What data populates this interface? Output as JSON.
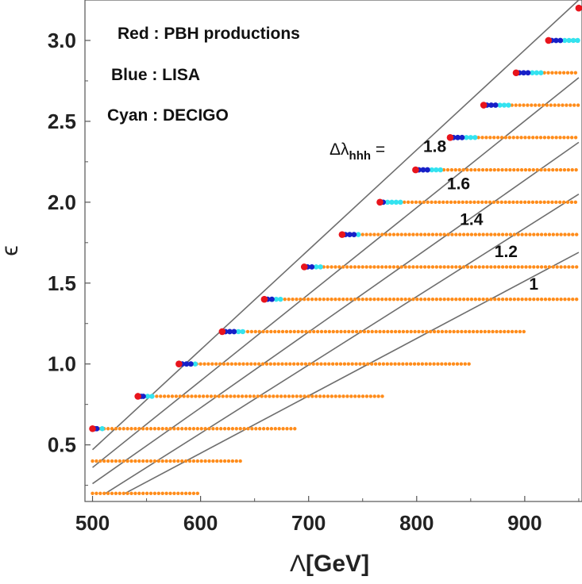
{
  "chart_data": {
    "type": "scatter",
    "xlabel_symbol": "Λ",
    "xlabel_unit": "[GeV]",
    "ylabel": "ϵ",
    "xlim": [
      493,
      953
    ],
    "ylim": [
      0.15,
      3.25
    ],
    "x_ticks": [
      500,
      600,
      700,
      800,
      900
    ],
    "y_ticks": [
      0.5,
      1.0,
      1.5,
      2.0,
      2.5,
      3.0
    ],
    "y_tick_labels": [
      "0.5",
      "1.0",
      "1.5",
      "2.0",
      "2.5",
      "3.0"
    ],
    "legend": [
      {
        "label": "Red : PBH productions",
        "color": "#e8141c"
      },
      {
        "label": "Blue : LISA",
        "color": "#1720c8"
      },
      {
        "label": "Cyan : DECIGO",
        "color": "#33e3f0"
      }
    ],
    "colors": {
      "grid_points": "#ff8c1a",
      "pbh": "#e8141c",
      "lisa": "#1720c8",
      "decigo": "#33e3f0",
      "contours": "#6e6e6e"
    },
    "grid_points": [
      {
        "epsilon": 0.2,
        "lambda_start": 500,
        "lambda_end": 600,
        "step": 3.6
      },
      {
        "epsilon": 0.4,
        "lambda_start": 500,
        "lambda_end": 640,
        "step": 3.6
      },
      {
        "epsilon": 0.6,
        "lambda_start": 500,
        "lambda_end": 690,
        "step": 3.6
      },
      {
        "epsilon": 0.8,
        "lambda_start": 545,
        "lambda_end": 770,
        "step": 3.6
      },
      {
        "epsilon": 1.0,
        "lambda_start": 582,
        "lambda_end": 850,
        "step": 3.6
      },
      {
        "epsilon": 1.2,
        "lambda_start": 622,
        "lambda_end": 900,
        "step": 3.6
      },
      {
        "epsilon": 1.4,
        "lambda_start": 660,
        "lambda_end": 950,
        "step": 3.6
      },
      {
        "epsilon": 1.6,
        "lambda_start": 696,
        "lambda_end": 950,
        "step": 3.6
      },
      {
        "epsilon": 1.8,
        "lambda_start": 732,
        "lambda_end": 950,
        "step": 3.6
      },
      {
        "epsilon": 2.0,
        "lambda_start": 767,
        "lambda_end": 950,
        "step": 3.6
      },
      {
        "epsilon": 2.2,
        "lambda_start": 800,
        "lambda_end": 950,
        "step": 3.6
      },
      {
        "epsilon": 2.4,
        "lambda_start": 832,
        "lambda_end": 950,
        "step": 3.6
      },
      {
        "epsilon": 2.6,
        "lambda_start": 863,
        "lambda_end": 950,
        "step": 3.6
      },
      {
        "epsilon": 2.8,
        "lambda_start": 893,
        "lambda_end": 950,
        "step": 3.6
      },
      {
        "epsilon": 3.0,
        "lambda_start": 922,
        "lambda_end": 950,
        "step": 3.6
      }
    ],
    "pbh_points": [
      {
        "x": 500,
        "y": 0.6
      },
      {
        "x": 542,
        "y": 0.8
      },
      {
        "x": 580,
        "y": 1.0
      },
      {
        "x": 620,
        "y": 1.2
      },
      {
        "x": 659,
        "y": 1.4
      },
      {
        "x": 696,
        "y": 1.6
      },
      {
        "x": 731,
        "y": 1.8
      },
      {
        "x": 766,
        "y": 2.0
      },
      {
        "x": 799,
        "y": 2.2
      },
      {
        "x": 831,
        "y": 2.4
      },
      {
        "x": 862,
        "y": 2.6
      },
      {
        "x": 892,
        "y": 2.8
      },
      {
        "x": 922,
        "y": 3.0
      },
      {
        "x": 950,
        "y": 3.2
      }
    ],
    "lisa_points": [
      {
        "x": 502,
        "y": 0.6
      },
      {
        "x": 504,
        "y": 0.6
      },
      {
        "x": 545,
        "y": 0.8
      },
      {
        "x": 547,
        "y": 0.8
      },
      {
        "x": 583,
        "y": 1.0
      },
      {
        "x": 587,
        "y": 1.0
      },
      {
        "x": 591,
        "y": 1.0
      },
      {
        "x": 623,
        "y": 1.2
      },
      {
        "x": 627,
        "y": 1.2
      },
      {
        "x": 631,
        "y": 1.2
      },
      {
        "x": 662,
        "y": 1.4
      },
      {
        "x": 666,
        "y": 1.4
      },
      {
        "x": 699,
        "y": 1.6
      },
      {
        "x": 703,
        "y": 1.6
      },
      {
        "x": 734,
        "y": 1.8
      },
      {
        "x": 738,
        "y": 1.8
      },
      {
        "x": 742,
        "y": 1.8
      },
      {
        "x": 769,
        "y": 2.0
      },
      {
        "x": 802,
        "y": 2.2
      },
      {
        "x": 806,
        "y": 2.2
      },
      {
        "x": 810,
        "y": 2.2
      },
      {
        "x": 834,
        "y": 2.4
      },
      {
        "x": 838,
        "y": 2.4
      },
      {
        "x": 842,
        "y": 2.4
      },
      {
        "x": 865,
        "y": 2.6
      },
      {
        "x": 869,
        "y": 2.6
      },
      {
        "x": 873,
        "y": 2.6
      },
      {
        "x": 895,
        "y": 2.8
      },
      {
        "x": 899,
        "y": 2.8
      },
      {
        "x": 903,
        "y": 2.8
      },
      {
        "x": 925,
        "y": 3.0
      },
      {
        "x": 929,
        "y": 3.0
      },
      {
        "x": 933,
        "y": 3.0
      }
    ],
    "decigo_points": [
      {
        "x": 509,
        "y": 0.6
      },
      {
        "x": 551,
        "y": 0.8
      },
      {
        "x": 555,
        "y": 0.8
      },
      {
        "x": 595,
        "y": 1.0
      },
      {
        "x": 635,
        "y": 1.2
      },
      {
        "x": 639,
        "y": 1.2
      },
      {
        "x": 670,
        "y": 1.4
      },
      {
        "x": 674,
        "y": 1.4
      },
      {
        "x": 707,
        "y": 1.6
      },
      {
        "x": 711,
        "y": 1.6
      },
      {
        "x": 746,
        "y": 1.8
      },
      {
        "x": 773,
        "y": 2.0
      },
      {
        "x": 777,
        "y": 2.0
      },
      {
        "x": 781,
        "y": 2.0
      },
      {
        "x": 785,
        "y": 2.0
      },
      {
        "x": 814,
        "y": 2.2
      },
      {
        "x": 818,
        "y": 2.2
      },
      {
        "x": 822,
        "y": 2.2
      },
      {
        "x": 846,
        "y": 2.4
      },
      {
        "x": 850,
        "y": 2.4
      },
      {
        "x": 854,
        "y": 2.4
      },
      {
        "x": 877,
        "y": 2.6
      },
      {
        "x": 881,
        "y": 2.6
      },
      {
        "x": 885,
        "y": 2.6
      },
      {
        "x": 907,
        "y": 2.8
      },
      {
        "x": 911,
        "y": 2.8
      },
      {
        "x": 915,
        "y": 2.8
      },
      {
        "x": 937,
        "y": 3.0
      },
      {
        "x": 941,
        "y": 3.0
      },
      {
        "x": 945,
        "y": 3.0
      },
      {
        "x": 949,
        "y": 3.0
      }
    ],
    "contour_lines": [
      {
        "label": "1.8",
        "start": [
          500,
          0.47
        ],
        "end": [
          950,
          3.25
        ]
      },
      {
        "label": "1.6",
        "start": [
          500,
          0.36
        ],
        "end": [
          950,
          2.77
        ]
      },
      {
        "label": "1.4",
        "start": [
          500,
          0.26
        ],
        "end": [
          950,
          2.37
        ]
      },
      {
        "label": "1.2",
        "start": [
          512,
          0.2
        ],
        "end": [
          950,
          2.05
        ]
      },
      {
        "label": "1",
        "start": [
          530,
          0.2
        ],
        "end": [
          950,
          1.69
        ]
      }
    ],
    "contour_labels": [
      {
        "text": "1.8",
        "x": 806,
        "y": 2.31
      },
      {
        "text": "1.6",
        "x": 828,
        "y": 2.08
      },
      {
        "text": "1.4",
        "x": 840,
        "y": 1.86
      },
      {
        "text": "1.2",
        "x": 872,
        "y": 1.66
      },
      {
        "text": "1",
        "x": 904,
        "y": 1.46
      }
    ],
    "contour_prefix": {
      "text": "Δλ",
      "sub": "hhh",
      "equals": " ="
    }
  }
}
